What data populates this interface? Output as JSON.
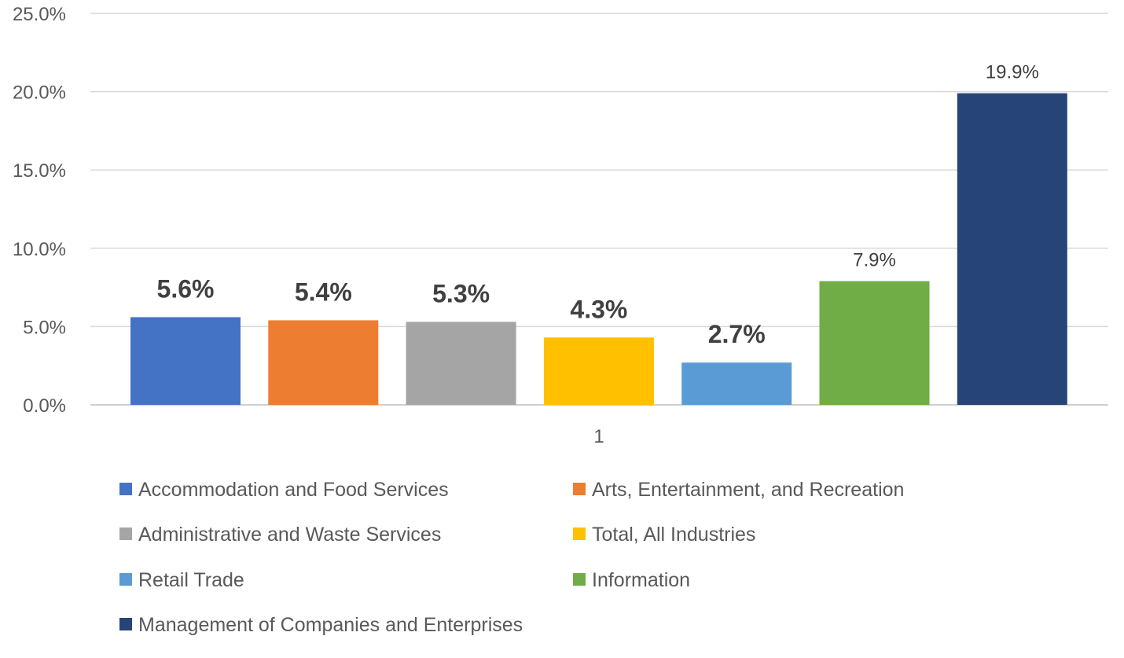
{
  "chart_data": {
    "type": "bar",
    "categories": [
      "1"
    ],
    "ylim": [
      0,
      25
    ],
    "yticks": [
      "0.0%",
      "5.0%",
      "10.0%",
      "15.0%",
      "20.0%",
      "25.0%"
    ],
    "ytick_values": [
      0,
      5,
      10,
      15,
      20,
      25
    ],
    "grid": true,
    "legend_position": "bottom",
    "series": [
      {
        "name": "Accommodation and Food Services",
        "values": [
          5.6
        ],
        "label": "5.6%",
        "color": "#4472C4",
        "label_bold": true
      },
      {
        "name": "Arts, Entertainment, and Recreation",
        "values": [
          5.4
        ],
        "label": "5.4%",
        "color": "#ED7D31",
        "label_bold": true
      },
      {
        "name": "Administrative and Waste Services",
        "values": [
          5.3
        ],
        "label": "5.3%",
        "color": "#A5A5A5",
        "label_bold": true
      },
      {
        "name": "Total, All Industries",
        "values": [
          4.3
        ],
        "label": "4.3%",
        "color": "#FFC000",
        "label_bold": true
      },
      {
        "name": "Retail Trade",
        "values": [
          2.7
        ],
        "label": "2.7%",
        "color": "#5B9BD5",
        "label_bold": true
      },
      {
        "name": "Information",
        "values": [
          7.9
        ],
        "label": "7.9%",
        "color": "#70AD47",
        "label_bold": false
      },
      {
        "name": "Management of Companies and Enterprises",
        "values": [
          19.9
        ],
        "label": "19.9%",
        "color": "#264478",
        "label_bold": false
      }
    ]
  }
}
